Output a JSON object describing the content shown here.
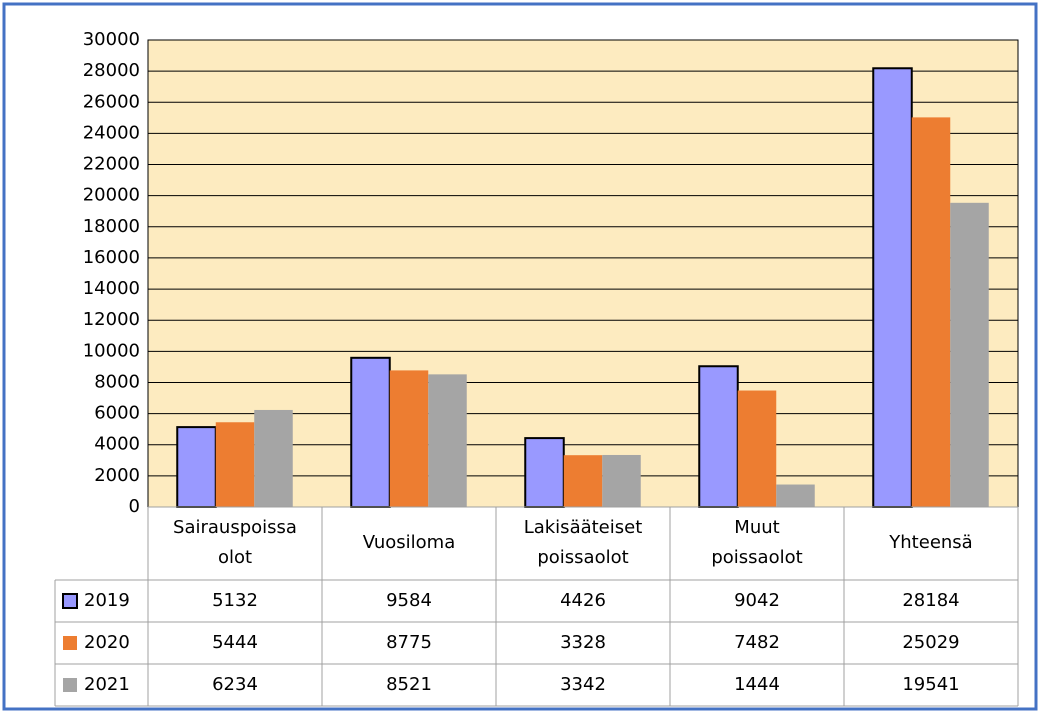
{
  "chart_data": {
    "type": "bar",
    "categories": [
      "Sairauspoissa\nolot",
      "Vuosiloma",
      "Lakisääteiset\npoissaolot",
      "Muut\npoissaolot",
      "Yhteensä"
    ],
    "series": [
      {
        "name": "2019",
        "color": "#9999ff",
        "values": [
          5132,
          9584,
          4426,
          9042,
          28184
        ]
      },
      {
        "name": "2020",
        "color": "#ed7d31",
        "values": [
          5444,
          8775,
          3328,
          7482,
          25029
        ]
      },
      {
        "name": "2021",
        "color": "#a5a5a5",
        "values": [
          6234,
          8521,
          3342,
          1444,
          19541
        ]
      }
    ],
    "ylim": [
      0,
      30000
    ],
    "yticks": [
      0,
      2000,
      4000,
      6000,
      8000,
      10000,
      12000,
      14000,
      16000,
      18000,
      20000,
      22000,
      24000,
      26000,
      28000,
      30000
    ],
    "grid": true,
    "plot_background": "#fdebc0"
  }
}
